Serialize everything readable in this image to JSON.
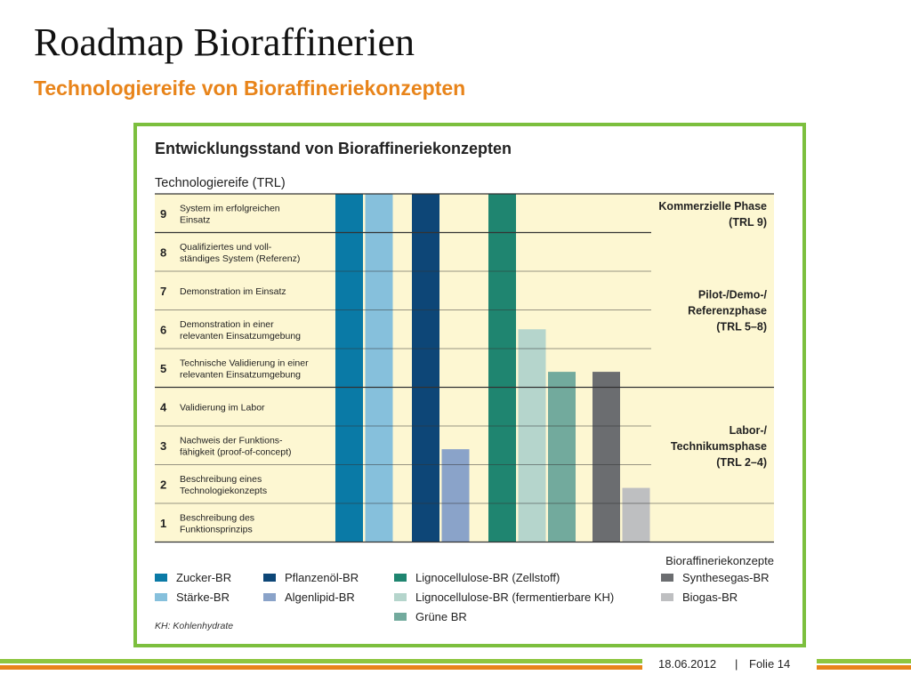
{
  "slide": {
    "title": "Roadmap Bioraffinerien",
    "subtitle": "Technologiereife von Bioraffineriekonzepten"
  },
  "footer": {
    "date": "18.06.2012",
    "separator": "|",
    "page": "Folie 14"
  },
  "colors": {
    "accent_orange": "#e8841a",
    "frame_green": "#7cbf3e",
    "band_yellow": "#fdf7d2",
    "footer_green": "#8dc63f"
  },
  "chart_data": {
    "type": "bar",
    "title": "Entwicklungsstand von Bioraffineriekonzepten",
    "ylabel": "Technologiereife (TRL)",
    "xlabel": "Bioraffineriekonzepte",
    "ylim": [
      0,
      9
    ],
    "grid": true,
    "legend_position": "bottom",
    "levels": [
      {
        "trl": "9",
        "desc": [
          "System im erfolgreichen",
          "Einsatz"
        ]
      },
      {
        "trl": "8",
        "desc": [
          "Qualifiziertes und voll-",
          "ständiges System (Referenz)"
        ]
      },
      {
        "trl": "7",
        "desc": [
          "Demonstration im Einsatz"
        ]
      },
      {
        "trl": "6",
        "desc": [
          "Demonstration in einer",
          "relevanten Einsatzumgebung"
        ]
      },
      {
        "trl": "5",
        "desc": [
          "Technische Validierung in einer",
          "relevanten Einsatzumgebung"
        ]
      },
      {
        "trl": "4",
        "desc": [
          "Validierung im Labor"
        ]
      },
      {
        "trl": "3",
        "desc": [
          "Nachweis der Funktions-",
          "fähigkeit (proof-of-concept)"
        ]
      },
      {
        "trl": "2",
        "desc": [
          "Beschreibung eines",
          "Technologiekonzepts"
        ]
      },
      {
        "trl": "1",
        "desc": [
          "Beschreibung des",
          "Funktionsprinzips"
        ]
      }
    ],
    "phases": [
      {
        "lines": [
          "Kommerzielle Phase",
          "(TRL 9)"
        ],
        "from": 9,
        "to": 9
      },
      {
        "lines": [
          "Pilot-/Demo-/",
          "Referenzphase",
          "(TRL 5–8)"
        ],
        "from": 5,
        "to": 8
      },
      {
        "lines": [
          "Labor-/",
          "Technikumsphase",
          "(TRL 2–4)"
        ],
        "from": 2,
        "to": 4
      }
    ],
    "series": [
      {
        "name": "Zucker-BR",
        "value": 9,
        "color": "#0a7aa6"
      },
      {
        "name": "Stärke-BR",
        "value": 9,
        "color": "#86c0dc"
      },
      {
        "name": "Pflanzenöl-BR",
        "value": 9,
        "color": "#0d4677"
      },
      {
        "name": "Algenlipid-BR",
        "value": 2.4,
        "color": "#8aa3c9"
      },
      {
        "name": "Lignocellulose-BR (Zellstoff)",
        "value": 9,
        "color": "#1f8570"
      },
      {
        "name": "Lignocellulose-BR (fermentierbare KH)",
        "value": 5.5,
        "color": "#b5d5cc"
      },
      {
        "name": "Grüne BR",
        "value": 4.4,
        "color": "#72aa9d"
      },
      {
        "name": "Synthesegas-BR",
        "value": 4.4,
        "color": "#6b6d70"
      },
      {
        "name": "Biogas-BR",
        "value": 1.4,
        "color": "#bebfc1"
      }
    ],
    "legend_note": "KH: Kohlenhydrate"
  }
}
